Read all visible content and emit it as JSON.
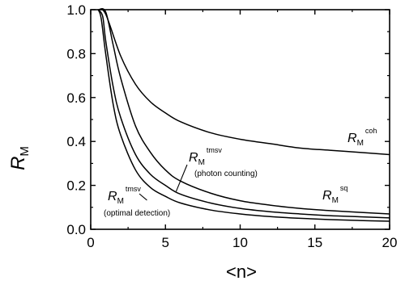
{
  "chart_data": {
    "type": "line",
    "xlabel": "<n>",
    "ylabel": {
      "main": "R",
      "sub": "M"
    },
    "xlim": [
      0,
      20
    ],
    "ylim": [
      0.0,
      1.0
    ],
    "xticks": [
      "0",
      "5",
      "10",
      "15",
      "20"
    ],
    "yticks": [
      "0.0",
      "0.2",
      "0.4",
      "0.6",
      "0.8",
      "1.0"
    ],
    "grid": false,
    "legend": "none",
    "series": [
      {
        "label": {
          "main": "R",
          "sub": "M",
          "sup": "coh"
        },
        "x": [
          0.5,
          1,
          2,
          3,
          4,
          5,
          6,
          8,
          10,
          12,
          14,
          16,
          18,
          20
        ],
        "y": [
          1.0,
          0.98,
          0.79,
          0.66,
          0.58,
          0.53,
          0.49,
          0.44,
          0.41,
          0.39,
          0.37,
          0.36,
          0.35,
          0.34
        ]
      },
      {
        "label": {
          "main": "R",
          "sub": "M",
          "sup": "sq"
        },
        "x": [
          0.5,
          1,
          1.5,
          2,
          3,
          4,
          5,
          6,
          8,
          10,
          12,
          14,
          16,
          18,
          20
        ],
        "y": [
          1.0,
          0.99,
          0.84,
          0.69,
          0.47,
          0.35,
          0.27,
          0.22,
          0.165,
          0.13,
          0.11,
          0.095,
          0.085,
          0.077,
          0.07
        ],
        "annotation_anchor": [
          17,
          0.09
        ]
      },
      {
        "label": {
          "main": "R",
          "sub": "M",
          "sup": "tmsv",
          "note": "(photon counting)"
        },
        "x": [
          0.5,
          0.8,
          1,
          1.5,
          2,
          3,
          4,
          5,
          6,
          8,
          10,
          12,
          14,
          16,
          18,
          20
        ],
        "y": [
          1.0,
          0.97,
          0.86,
          0.65,
          0.51,
          0.34,
          0.25,
          0.2,
          0.16,
          0.12,
          0.095,
          0.08,
          0.07,
          0.062,
          0.057,
          0.052
        ],
        "annotation_anchor": [
          5.5,
          0.18
        ]
      },
      {
        "label": {
          "main": "R",
          "sub": "M",
          "sup": "tmsv",
          "note": "(optimal detection)"
        },
        "x": [
          0.5,
          0.7,
          1,
          1.5,
          2,
          3,
          4,
          5,
          6,
          8,
          10,
          12,
          14,
          16,
          18,
          20
        ],
        "y": [
          1.0,
          0.96,
          0.8,
          0.57,
          0.43,
          0.27,
          0.19,
          0.15,
          0.12,
          0.088,
          0.07,
          0.058,
          0.05,
          0.044,
          0.04,
          0.037
        ],
        "annotation_anchor": [
          3.6,
          0.14
        ]
      }
    ]
  }
}
